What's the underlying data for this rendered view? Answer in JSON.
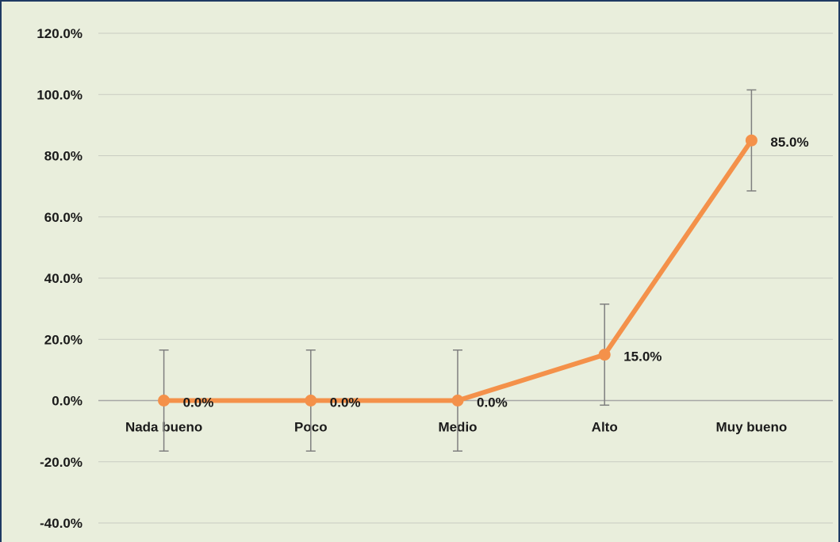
{
  "chart_data": {
    "type": "line",
    "title": "",
    "xlabel": "",
    "ylabel": "",
    "categories": [
      "Nada bueno",
      "Poco",
      "Medio",
      "Alto",
      "Muy bueno"
    ],
    "series": [
      {
        "values": [
          0.0,
          0.0,
          0.0,
          15.0,
          85.0
        ],
        "data_labels": [
          "0.0%",
          "0.0%",
          "0.0%",
          "15.0%",
          "85.0%"
        ],
        "error_bar": 16.5,
        "color": "#f4914a"
      }
    ],
    "ylim": [
      -40,
      120
    ],
    "yticks": [
      120,
      100,
      80,
      60,
      40,
      20,
      0,
      -20,
      -40
    ],
    "ytick_labels": [
      "120.0%",
      "100.0%",
      "80.0%",
      "60.0%",
      "40.0%",
      "20.0%",
      "0.0%",
      "-20.0%",
      "-40.0%"
    ],
    "grid": true,
    "legend": "none",
    "colors": {
      "background": "#e9eedc",
      "grid": "#c9ccc2",
      "line": "#f4914a",
      "error_bar": "#7f7f7f",
      "border": "#1f3a63"
    }
  }
}
